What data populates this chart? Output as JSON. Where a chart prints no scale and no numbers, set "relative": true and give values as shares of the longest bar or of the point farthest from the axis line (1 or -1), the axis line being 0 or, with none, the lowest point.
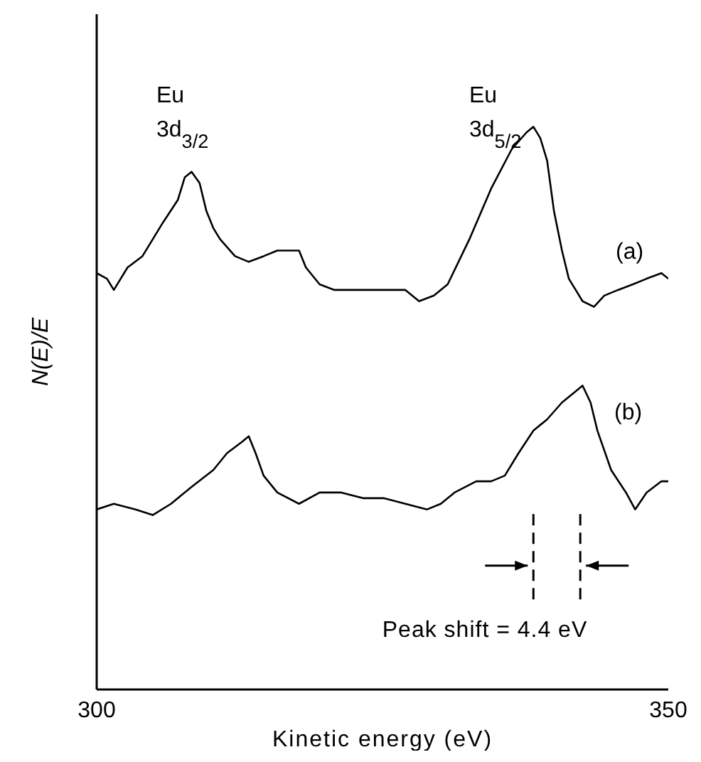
{
  "chart_data": {
    "type": "line",
    "relative": true,
    "xlabel": "Kinetic energy (eV)",
    "ylabel": "N(E)/E",
    "xlim": [
      300,
      350
    ],
    "xticks": [
      300,
      350
    ],
    "tick_labels": "x",
    "marker": "none",
    "line_style": "solid",
    "series": [
      {
        "color": "#000000",
        "x": [
          300.0,
          300.9,
          301.5,
          302.7,
          304.0,
          304.6,
          305.8,
          307.1,
          307.7,
          308.3,
          309.0,
          309.6,
          310.2,
          310.8,
          312.1,
          313.3,
          314.6,
          315.8,
          317.0,
          317.7,
          318.3,
          319.5,
          320.8,
          322.0,
          323.3,
          324.5,
          325.7,
          327.0,
          328.2,
          329.5,
          330.7,
          332.6,
          334.5,
          336.3,
          337.6,
          338.2,
          338.8,
          339.4,
          340.0,
          340.7,
          341.3,
          341.9,
          342.5,
          343.5,
          344.4,
          345.6,
          346.9,
          348.1,
          349.4,
          350.0
        ],
        "values": [
          0.74,
          0.73,
          0.71,
          0.75,
          0.77,
          0.79,
          0.83,
          0.87,
          0.91,
          0.92,
          0.9,
          0.85,
          0.82,
          0.8,
          0.77,
          0.76,
          0.77,
          0.78,
          0.78,
          0.78,
          0.75,
          0.72,
          0.71,
          0.71,
          0.71,
          0.71,
          0.71,
          0.71,
          0.69,
          0.7,
          0.72,
          0.8,
          0.89,
          0.96,
          0.99,
          1.0,
          0.98,
          0.94,
          0.85,
          0.78,
          0.73,
          0.71,
          0.69,
          0.68,
          0.7,
          0.71,
          0.72,
          0.73,
          0.74,
          0.73
        ]
      },
      {
        "color": "#000000",
        "x": [
          300.0,
          301.5,
          303.4,
          304.9,
          306.5,
          308.3,
          310.2,
          311.4,
          312.7,
          313.3,
          313.9,
          314.6,
          315.8,
          317.7,
          319.5,
          321.4,
          323.3,
          325.1,
          327.0,
          328.9,
          330.1,
          331.3,
          333.2,
          334.5,
          335.7,
          336.9,
          338.2,
          339.4,
          340.7,
          341.9,
          342.5,
          343.2,
          343.8,
          345.0,
          346.3,
          347.1,
          348.1,
          349.4,
          350.0
        ],
        "values": [
          0.32,
          0.33,
          0.32,
          0.31,
          0.33,
          0.36,
          0.39,
          0.42,
          0.44,
          0.45,
          0.42,
          0.38,
          0.35,
          0.33,
          0.35,
          0.35,
          0.34,
          0.34,
          0.33,
          0.32,
          0.33,
          0.35,
          0.37,
          0.37,
          0.38,
          0.42,
          0.46,
          0.48,
          0.51,
          0.53,
          0.54,
          0.51,
          0.46,
          0.39,
          0.35,
          0.32,
          0.35,
          0.37,
          0.37
        ]
      }
    ],
    "ref_lines": [
      {
        "axis": "x",
        "value": 338.2,
        "line_style": "dashed"
      },
      {
        "axis": "x",
        "value": 342.3,
        "line_style": "dashed"
      }
    ],
    "annotations": [
      "Eu 3d$_{3/2}$",
      "Eu 3d$_{5/2}$",
      "(a)",
      "(b)",
      "Peak shift = 4.4 eV"
    ]
  }
}
